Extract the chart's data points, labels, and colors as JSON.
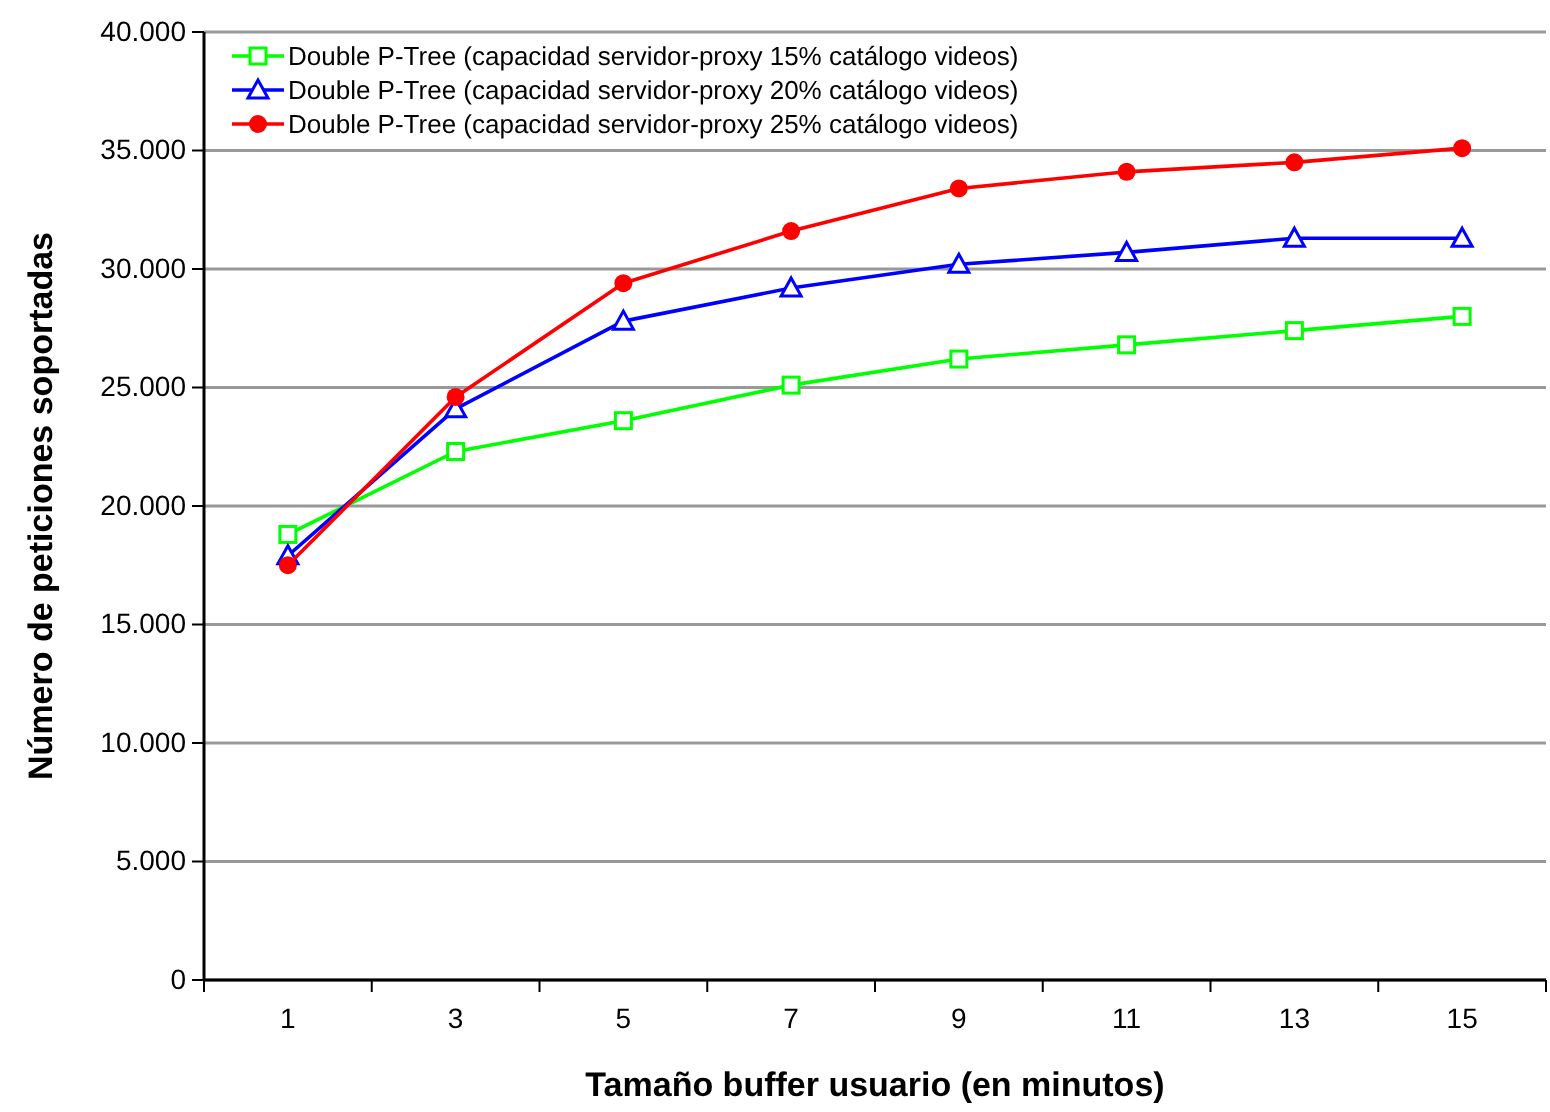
{
  "chart_data": {
    "type": "line",
    "xlabel": "Tamaño buffer usuario (en minutos)",
    "ylabel": "Número de peticiones soportadas",
    "x": [
      1,
      3,
      5,
      7,
      9,
      11,
      13,
      15
    ],
    "xlim": [
      0,
      16
    ],
    "xticks": [
      {
        "value": 0,
        "label": null
      },
      1,
      {
        "value": 2,
        "label": null
      },
      3,
      {
        "value": 4,
        "label": null
      },
      5,
      {
        "value": 6,
        "label": null
      },
      7,
      {
        "value": 8,
        "label": null
      },
      9,
      {
        "value": 10,
        "label": null
      },
      11,
      {
        "value": 12,
        "label": null
      },
      13,
      {
        "value": 14,
        "label": null
      },
      15,
      {
        "value": 16,
        "label": null
      }
    ],
    "series": [
      {
        "name": "Double P-Tree (capacidad servidor-proxy 15% catálogo videos)",
        "color": "#00ff00",
        "marker": "square",
        "values": [
          18800,
          22300,
          23600,
          25100,
          26200,
          26800,
          27400,
          28000
        ]
      },
      {
        "name": "Double P-Tree (capacidad servidor-proxy 20% catálogo videos)",
        "color": "#0000ff",
        "marker": "triangle",
        "values": [
          17900,
          24100,
          27800,
          29200,
          30200,
          30700,
          31300,
          31300
        ]
      },
      {
        "name": "Double P-Tree (capacidad servidor-proxy 25% catálogo videos)",
        "color": "#ff0000",
        "marker": "circle",
        "values": [
          17500,
          24600,
          29400,
          31600,
          33400,
          34100,
          34500,
          35100
        ]
      }
    ],
    "ylim": [
      0,
      40000
    ],
    "yticks": [
      {
        "value": 0,
        "label": "0"
      },
      {
        "value": 5000,
        "label": "5.000"
      },
      {
        "value": 10000,
        "label": "10.000"
      },
      {
        "value": 15000,
        "label": "15.000"
      },
      {
        "value": 20000,
        "label": "20.000"
      },
      {
        "value": 25000,
        "label": "25.000"
      },
      {
        "value": 30000,
        "label": "30.000"
      },
      {
        "value": 35000,
        "label": "35.000"
      },
      {
        "value": 40000,
        "label": "40.000"
      }
    ],
    "grid": "y",
    "legend": "top left",
    "line_style": "solid"
  }
}
